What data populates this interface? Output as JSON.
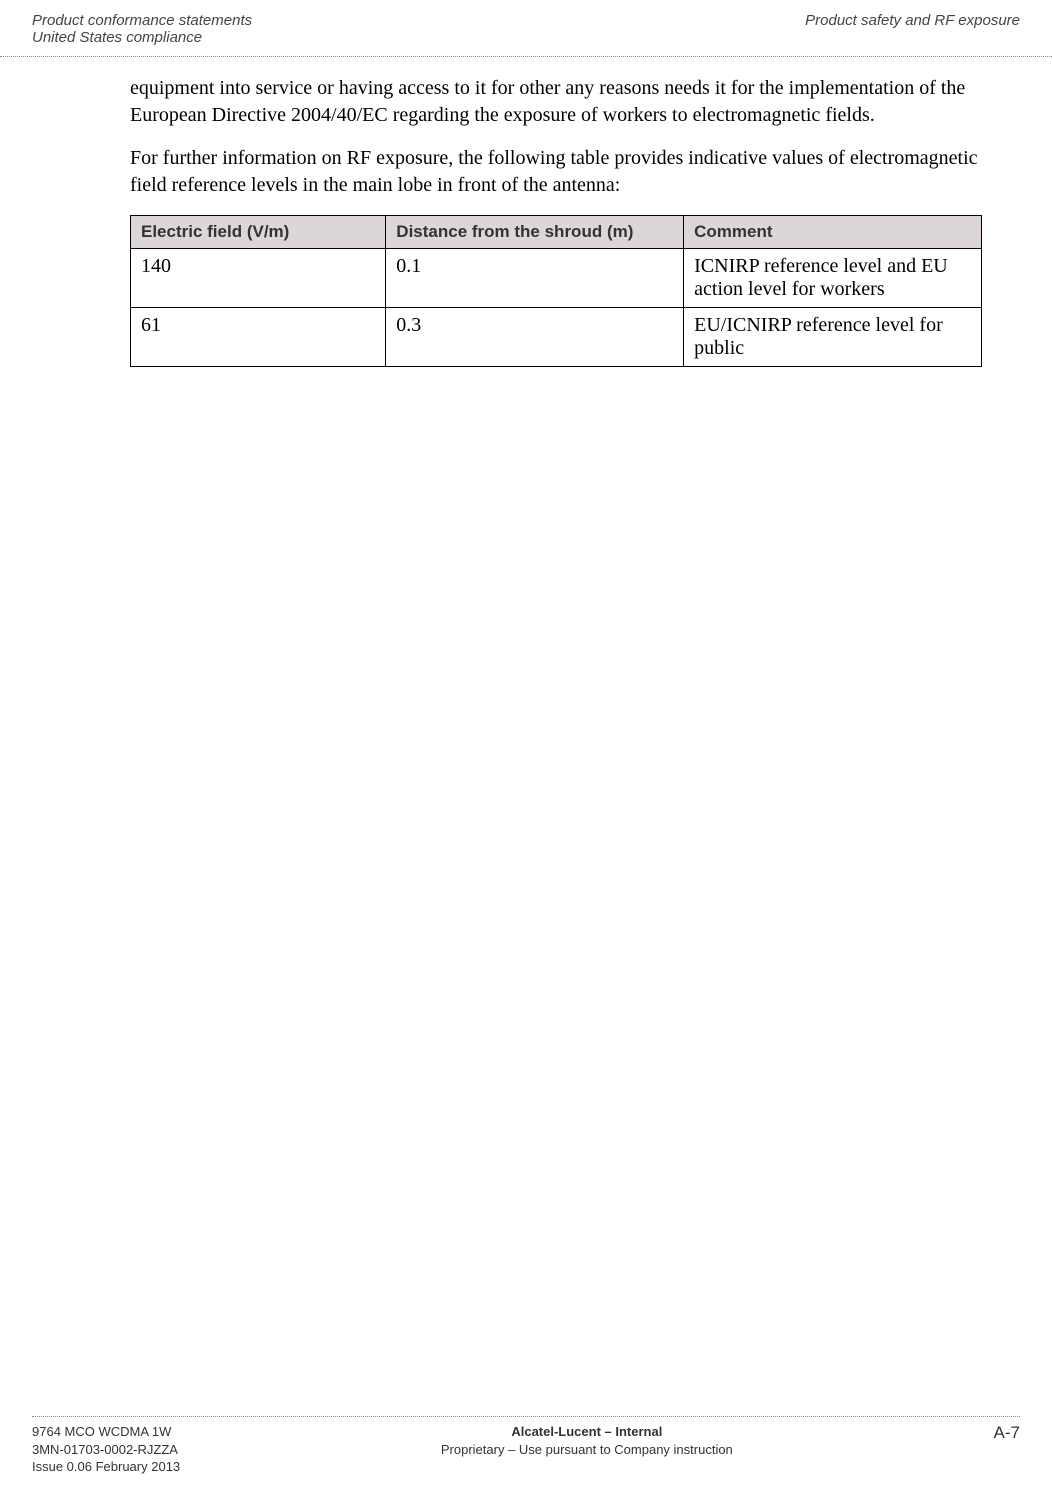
{
  "header": {
    "left_line1": "Product conformance statements",
    "left_line2": "United States compliance",
    "right_line1": "Product safety and RF exposure"
  },
  "content": {
    "para1": "equipment into service or having access to it for other any reasons needs it for the implementation of the European Directive 2004/40/EC regarding the exposure of workers to electromagnetic fields.",
    "para2": "For further information on RF exposure, the following table provides indicative values of electromagnetic field reference levels in the main lobe in front of the antenna:"
  },
  "table": {
    "headers": [
      "Electric field (V/m)",
      "Distance from the shroud (m)",
      "Comment"
    ],
    "rows": [
      [
        "140",
        "0.1",
        "ICNIRP reference level and EU action level for workers"
      ],
      [
        "61",
        "0.3",
        "EU/ICNIRP reference level for public"
      ]
    ],
    "header_bg": "#ddd6d6",
    "border_color": "#000000"
  },
  "footer": {
    "left_line1": "9764 MCO WCDMA 1W",
    "left_line2": "3MN-01703-0002-RJZZA",
    "left_line3": "Issue 0.06   February 2013",
    "center_line1": "Alcatel-Lucent – Internal",
    "center_line2": "Proprietary – Use pursuant to Company instruction",
    "right": "A-7"
  }
}
